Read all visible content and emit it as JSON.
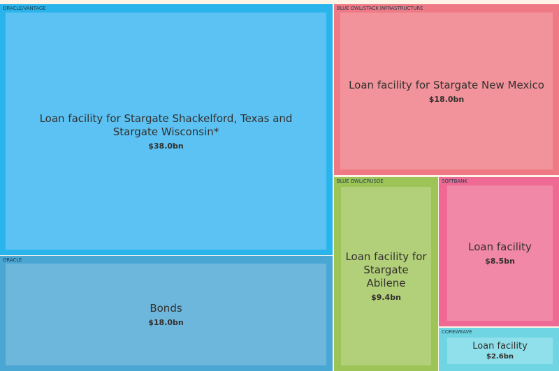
{
  "chart_data": {
    "type": "treemap",
    "unit": "$bn",
    "items": [
      {
        "group": "ORACLE/VANTAGE",
        "label": "Loan facility for Stargate Shackelford, Texas and Stargate Wisconsin*",
        "value": 38.0,
        "value_label": "$38.0bn",
        "color": "#29b5ec",
        "inner_color": "#5bc2f3"
      },
      {
        "group": "ORACLE",
        "label": "Bonds",
        "value": 18.0,
        "value_label": "$18.0bn",
        "color": "#4aa7d4",
        "inner_color": "#6db7dd"
      },
      {
        "group": "BLUE OWL/STACK INFRASTRUCTURE",
        "label": "Loan facility for Stargate New Mexico",
        "value": 18.0,
        "value_label": "$18.0bn",
        "color": "#ef7a86",
        "inner_color": "#f2939b"
      },
      {
        "group": "BLUE OWL/CRUSOE",
        "label": "Loan facility for Stargate Abilene",
        "value": 9.4,
        "value_label": "$9.4bn",
        "color": "#9dc456",
        "inner_color": "#b2cf79"
      },
      {
        "group": "SOFTBANK",
        "label": "Loan facility",
        "value": 8.5,
        "value_label": "$8.5bn",
        "color": "#ee6a95",
        "inner_color": "#f288a8"
      },
      {
        "group": "COREWEAVE",
        "label": "Loan facility",
        "value": 2.6,
        "value_label": "$2.6bn",
        "color": "#6fd5e2",
        "inner_color": "#8fe0ea"
      }
    ]
  }
}
